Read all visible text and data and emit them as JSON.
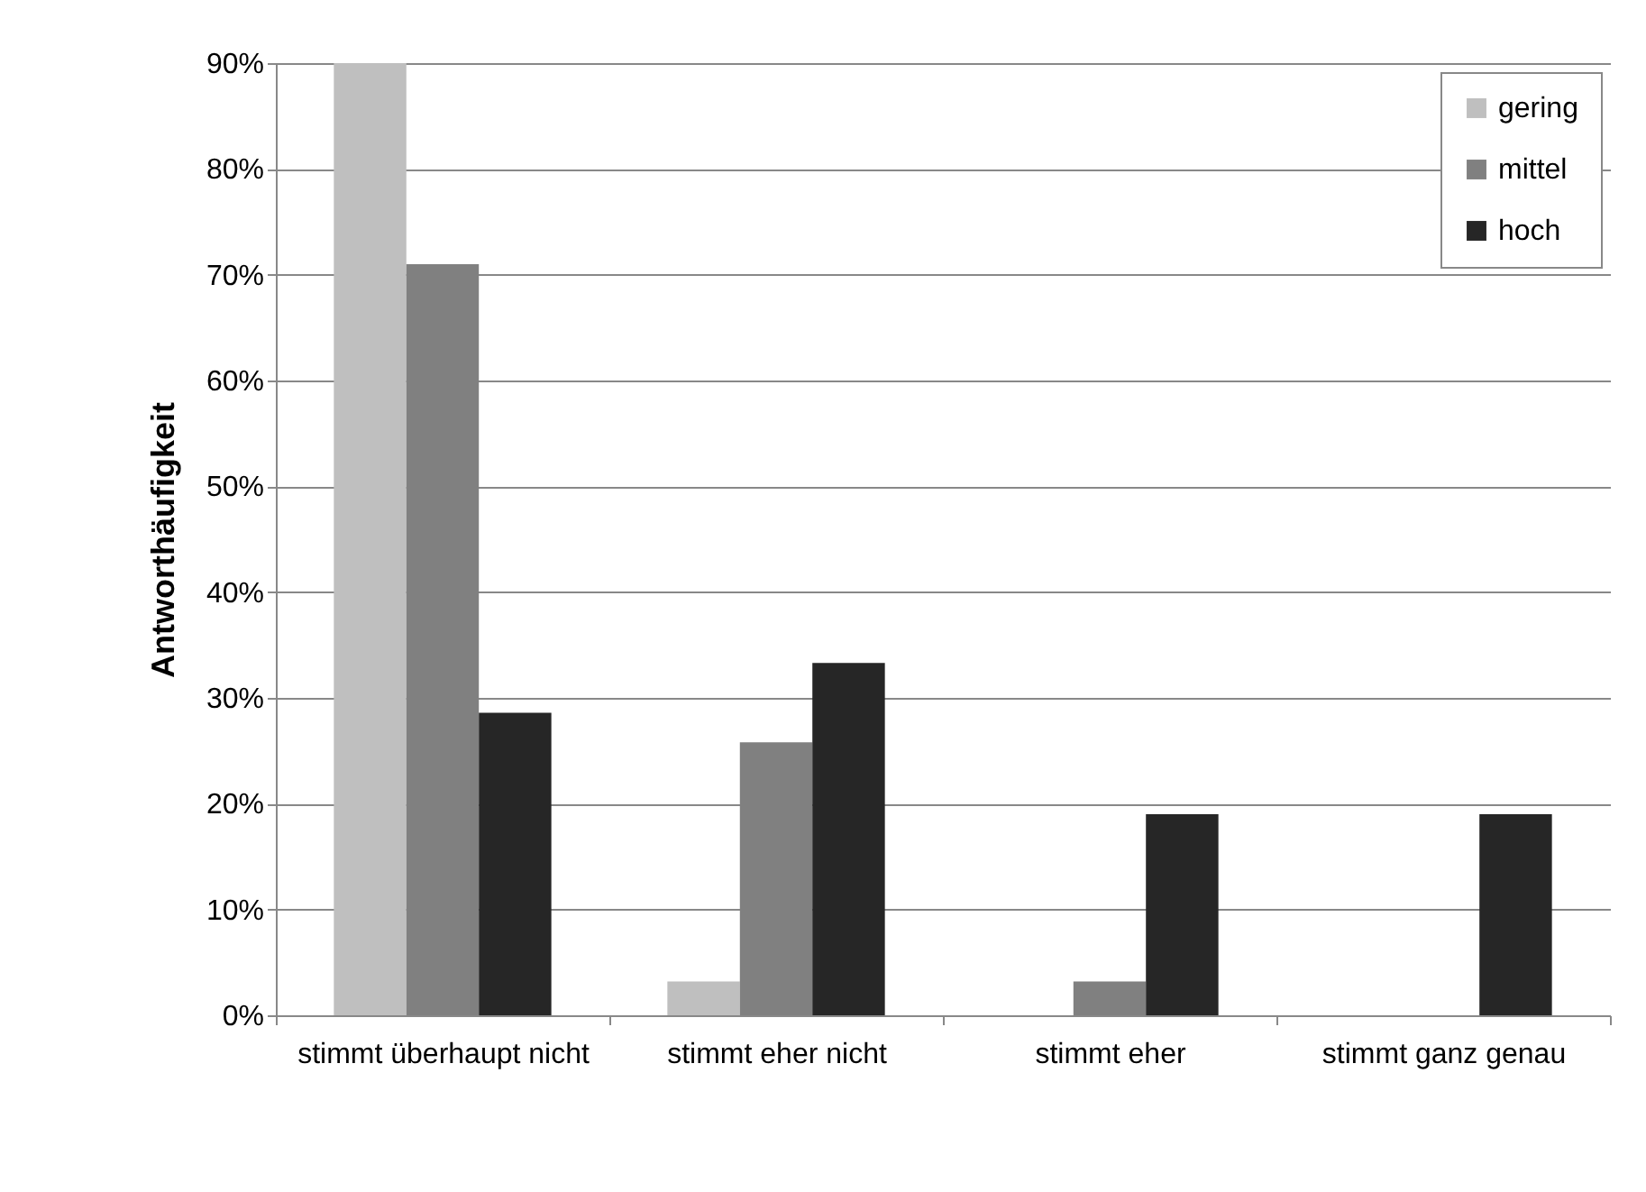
{
  "chart_data": {
    "type": "bar",
    "ylabel": "Antworthäufigkeit",
    "categories": [
      "stimmt überhaupt nicht",
      "stimmt eher nicht",
      "stimmt eher",
      "stimmt ganz genau"
    ],
    "series": [
      {
        "name": "gering",
        "color": "#bfbfbf",
        "values": [
          90,
          3.2,
          0,
          0
        ]
      },
      {
        "name": "mittel",
        "color": "#808080",
        "values": [
          71,
          25.8,
          3.2,
          0
        ]
      },
      {
        "name": "hoch",
        "color": "#262626",
        "values": [
          28.6,
          33.3,
          19,
          19
        ]
      }
    ],
    "ylim": [
      0,
      90
    ],
    "yticks": [
      {
        "value": 0,
        "label": "0%"
      },
      {
        "value": 10,
        "label": "10%"
      },
      {
        "value": 20,
        "label": "20%"
      },
      {
        "value": 30,
        "label": "30%"
      },
      {
        "value": 40,
        "label": "40%"
      },
      {
        "value": 50,
        "label": "50%"
      },
      {
        "value": 60,
        "label": "60%"
      },
      {
        "value": 70,
        "label": "70%"
      },
      {
        "value": 80,
        "label": "80%"
      },
      {
        "value": 90,
        "label": "90%"
      }
    ],
    "grid": "y",
    "legend": "top right"
  }
}
